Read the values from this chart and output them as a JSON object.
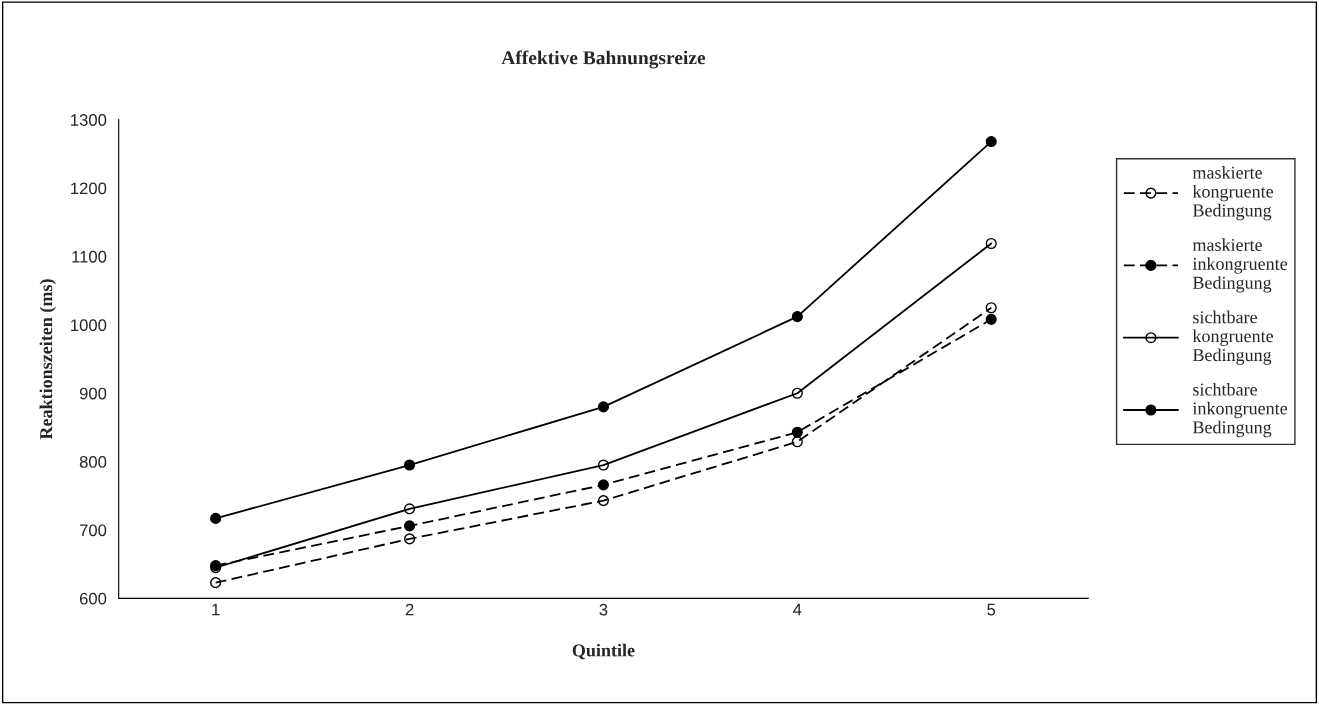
{
  "chart_data": {
    "type": "line",
    "title": "Affektive Bahnungsreize",
    "xlabel": "Quintile",
    "ylabel": "Reaktionszeiten (ms)",
    "categories": [
      "1",
      "2",
      "3",
      "4",
      "5"
    ],
    "ylim": [
      600,
      1300
    ],
    "yticks": [
      600,
      700,
      800,
      900,
      1000,
      1100,
      1200,
      1300
    ],
    "grid": false,
    "legend": "right",
    "marker": "circle",
    "series": [
      {
        "name": "maskierte kongruente Bedingung",
        "color": "#000000",
        "line_style": "dashed",
        "values": [
          623,
          687,
          743,
          829,
          1025
        ]
      },
      {
        "name": "maskierte inkongruente Bedingung",
        "color": "#000000",
        "line_style": "dashed",
        "values": [
          648,
          706,
          766,
          843,
          1008
        ]
      },
      {
        "name": "sichtbare kongruente Bedingung",
        "color": "#000000",
        "line_style": "solid",
        "values": [
          645,
          731,
          795,
          900,
          1119
        ]
      },
      {
        "name": "sichtbare inkongruente Bedingung",
        "color": "#000000",
        "line_style": "solid",
        "values": [
          717,
          795,
          880,
          1012,
          1268
        ]
      }
    ]
  }
}
